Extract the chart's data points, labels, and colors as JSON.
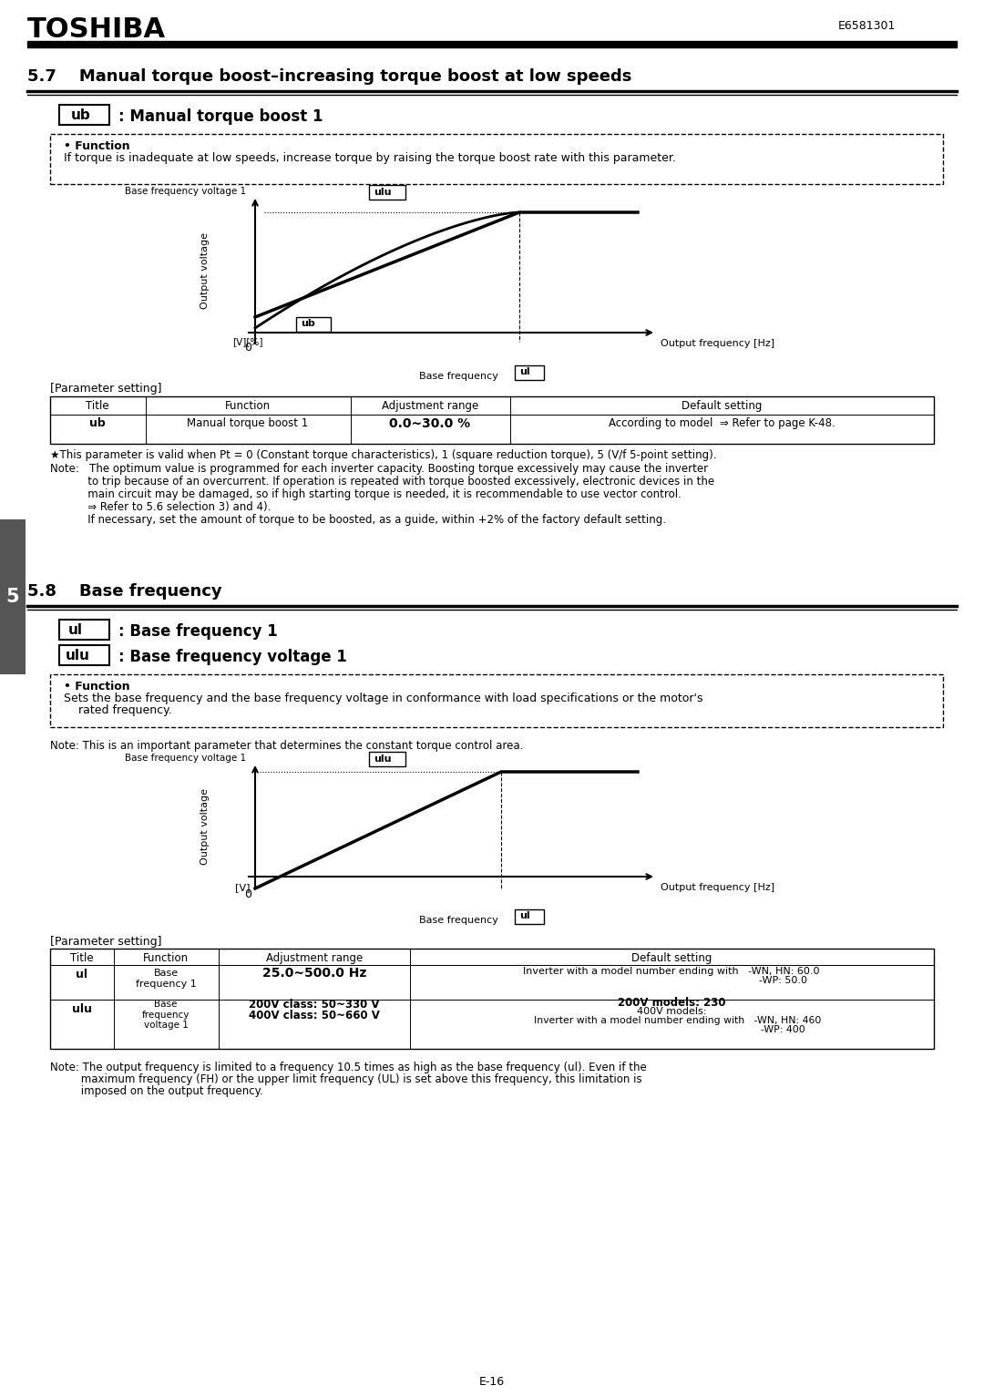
{
  "page_title": "TOSHIBA",
  "doc_number": "E6581301",
  "section_57_title": "5.7    Manual torque boost–increasing torque boost at low speeds",
  "ub_label": "ub",
  "ub_desc": ": Manual torque boost 1",
  "function_title": "• Function",
  "function_text_57": "If torque is inadequate at low speeds, increase torque by raising the torque boost rate with this parameter.",
  "param_setting": "[Parameter setting]",
  "table1_headers": [
    "Title",
    "Function",
    "Adjustment range",
    "Default setting"
  ],
  "table1_row": [
    "ub",
    "Manual torque boost 1",
    "0.0~30.0 %",
    "According to model  ⇒ Refer to page K-48."
  ],
  "star_note": "★This parameter is valid when Pt=0 (Constant torque characteristics), 1 (square reduction torque), 5 (V/f 5-point setting).",
  "note_57_1": "Note:   The optimum value is programmed for each inverter capacity. Boosting torque excessively may cause the inverter",
  "note_57_2": "           to trip because of an overcurrent. If operation is repeated with torque boosted excessively, electronic devices in the",
  "note_57_3": "           main circuit may be damaged, so if high starting torque is needed, it is recommendable to use vector control.",
  "note_57_4": "           ⇒ Refer to 5.6 selection 3) and 4).",
  "note_57_5": "           If necessary, set the amount of torque to be boosted, as a guide, within +2% of the factory default setting.",
  "section_58_title": "5.8    Base frequency",
  "ul_label": "ul",
  "ul_desc": ": Base frequency 1",
  "ulu_label": "ulu",
  "ulu_desc": ": Base frequency voltage 1",
  "function_text_58": "Sets the base frequency and the base frequency voltage in conformance with load specifications or the motor's\n    rated frequency.",
  "note_58_intro": "Note: This is an important parameter that determines the constant torque control area.",
  "param_setting2": "[Parameter setting]",
  "table2_headers": [
    "Title",
    "Function",
    "Adjustment range",
    "Default setting"
  ],
  "table2_rows": [
    [
      "ul",
      "Base\nfrequency 1",
      "25.0~500.0 Hz",
      "Inverter with a model number ending with   -WN, HN: 60.0\n                                                                      -WP: 50.0"
    ],
    [
      "ulu",
      "Base\nfrequency\nvoltage 1",
      "200V class: 50~330 V\n400V class: 50~660 V",
      "200V models: 230\n400V models:\n    Inverter with a model number ending with   -WN, HN: 460\n                                                                      -WP: 400"
    ]
  ],
  "note_58_final": "Note: The output frequency is limited to a frequency 10.5 times as high as the base frequency (ul). Even if the\n         maximum frequency (FH) or the upper limit frequency (UL) is set above this frequency, this limitation is\n         imposed on the output frequency.",
  "page_num": "E-16",
  "bg_color": "#ffffff",
  "text_color": "#000000",
  "header_bg": "#000000",
  "header_text": "#ffffff"
}
